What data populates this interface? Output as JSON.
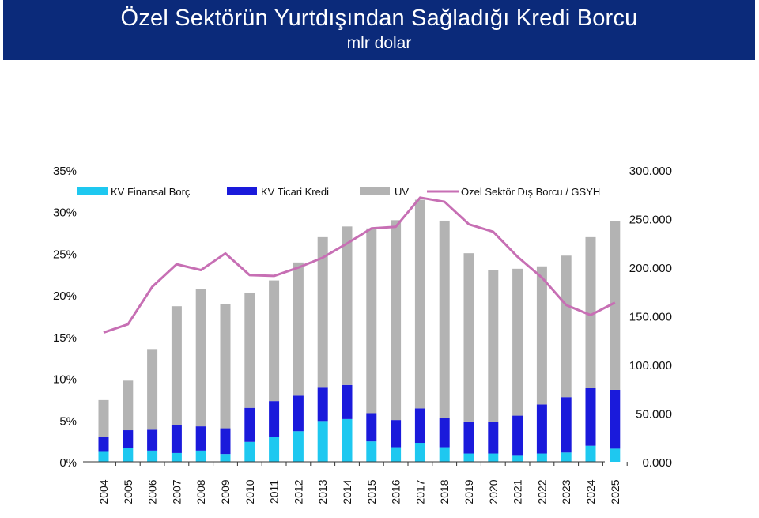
{
  "header": {
    "title": "Özel Sektörün Yurtdışından Sağladığı Kredi Borcu",
    "subtitle": "mlr dolar"
  },
  "chart_data": {
    "type": "bar",
    "stacked": true,
    "categories": [
      "2004",
      "2005",
      "2006",
      "2007",
      "2008",
      "2009",
      "2010",
      "2011",
      "2012",
      "2013",
      "2014",
      "2015",
      "2016",
      "2017",
      "2018",
      "2019",
      "2020",
      "2021",
      "2022",
      "2023",
      "2024",
      "2025"
    ],
    "series": [
      {
        "name": "KV Finansal Borç",
        "axis": "right",
        "color": "#1ec8f0",
        "values": [
          11000,
          14500,
          11500,
          9000,
          11500,
          8000,
          20500,
          25500,
          31500,
          42000,
          44000,
          21000,
          15000,
          19500,
          15000,
          8500,
          8500,
          7000,
          8500,
          9500,
          16500,
          13500
        ]
      },
      {
        "name": "KV Ticari Kredi",
        "axis": "right",
        "color": "#1a1adb",
        "values": [
          15000,
          18000,
          21500,
          29000,
          25000,
          26500,
          35000,
          37000,
          36500,
          35000,
          35000,
          29000,
          28000,
          35500,
          30000,
          33000,
          32500,
          40500,
          50500,
          57000,
          59500,
          60500
        ]
      },
      {
        "name": "UV",
        "axis": "right",
        "color": "#b3b3b3",
        "values": [
          37500,
          51000,
          83000,
          122000,
          141500,
          128000,
          118500,
          124000,
          137000,
          154000,
          163000,
          190000,
          205500,
          214500,
          203000,
          173000,
          156500,
          151000,
          142000,
          145500,
          155000,
          173500
        ]
      },
      {
        "name": "Özel Sektör Dış Borcu / GSYH",
        "type": "line",
        "axis": "left",
        "color": "#c76fb4",
        "values": [
          0.155,
          0.165,
          0.21,
          0.237,
          0.23,
          0.25,
          0.224,
          0.223,
          0.233,
          0.245,
          0.262,
          0.28,
          0.282,
          0.317,
          0.312,
          0.285,
          0.276,
          0.246,
          0.221,
          0.188,
          0.176,
          0.191
        ]
      }
    ],
    "y_left": {
      "min": 0,
      "max": 0.35,
      "ticks": [
        "0%",
        "5%",
        "10%",
        "15%",
        "20%",
        "25%",
        "30%",
        "35%"
      ]
    },
    "y_right": {
      "min": 0,
      "max": 300000,
      "ticks": [
        "0.000",
        "50.000",
        "100.000",
        "150.000",
        "200.000",
        "250.000",
        "300.000"
      ]
    },
    "legend_placement": "top",
    "grid": false
  }
}
